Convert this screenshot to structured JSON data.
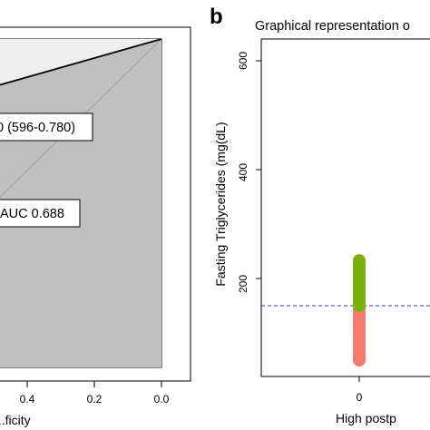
{
  "panel_b_label": "b",
  "chart_data": [
    {
      "type": "area",
      "xlabel": "...ficity",
      "xlim": [
        1.0,
        0.0
      ],
      "ylim": [
        0.0,
        1.0
      ],
      "x_ticks": [
        "0.4",
        "0.2",
        "0.0"
      ],
      "x_tick_values": [
        0.4,
        0.2,
        0.0
      ],
      "series": [
        {
          "x": [
            0.0,
            1.0
          ],
          "y": [
            1.0,
            0.71
          ]
        }
      ],
      "annotations": [
        "0 (596-0.780)",
        "AUC 0.688"
      ]
    },
    {
      "type": "scatter",
      "title": "Graphical representation o",
      "ylabel": "Fasting Triglycerides (mg(dL)",
      "xlabel": "High postp",
      "ylim": [
        20,
        640
      ],
      "y_ticks": [
        "200",
        "400",
        "600"
      ],
      "y_tick_values": [
        200,
        400,
        600
      ],
      "x_ticks": [
        "0"
      ],
      "reference_line": {
        "y": 150,
        "style": "dashed",
        "color": "#2b3a9a"
      },
      "series": [
        {
          "x": [
            0,
            0,
            0,
            0,
            0,
            0,
            0,
            0,
            0,
            0,
            0,
            0,
            0,
            0,
            0,
            0,
            0,
            0,
            0,
            0,
            0,
            0,
            0
          ],
          "y": [
            50,
            55,
            60,
            65,
            70,
            75,
            80,
            85,
            90,
            95,
            100,
            105,
            110,
            115,
            120,
            125,
            130,
            135,
            140,
            145,
            148,
            138,
            128
          ],
          "color": "#f47a72"
        },
        {
          "x": [
            0,
            0,
            0,
            0,
            0,
            0,
            0,
            0,
            0,
            0,
            0,
            0,
            0,
            0,
            0,
            0,
            0,
            0
          ],
          "y": [
            150,
            155,
            160,
            165,
            170,
            175,
            180,
            185,
            190,
            195,
            200,
            205,
            210,
            215,
            220,
            225,
            230,
            233
          ],
          "color": "#7bb10f"
        }
      ]
    }
  ]
}
